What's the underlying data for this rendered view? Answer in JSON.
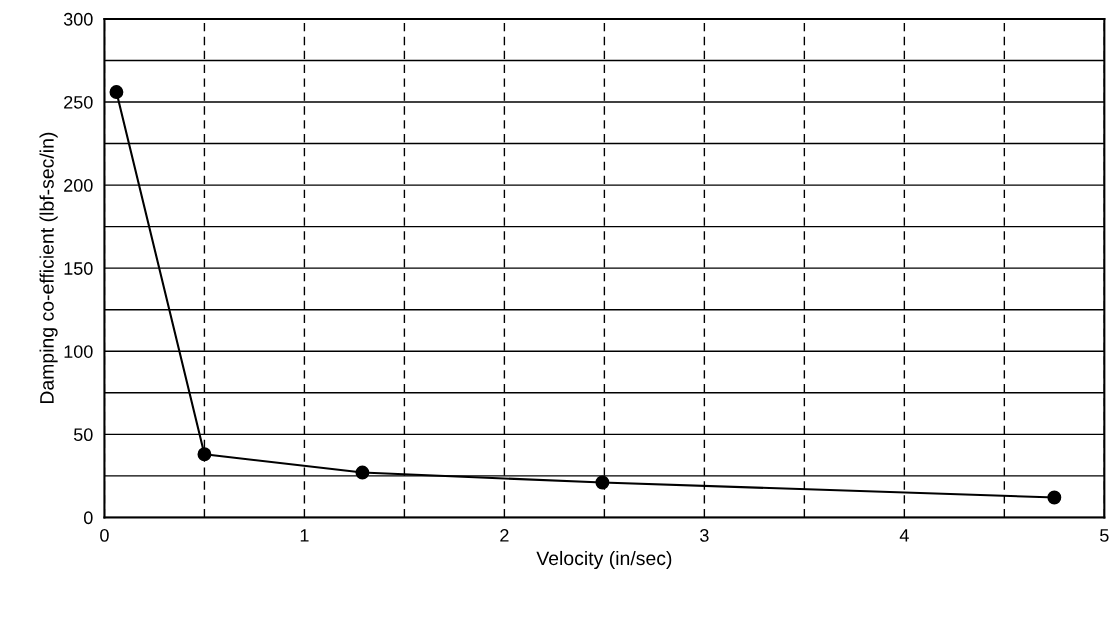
{
  "chart_data": {
    "type": "line",
    "xlabel": "Velocity (in/sec)",
    "ylabel": "Damping co-efficient (lbf-sec/in)",
    "x": [
      0.06,
      0.5,
      1.29,
      2.49,
      4.75
    ],
    "series": [
      {
        "color": "#000000",
        "values": [
          256,
          38,
          27,
          21,
          12
        ]
      }
    ],
    "xlim": [
      0,
      5
    ],
    "ylim": [
      0,
      300
    ],
    "xticks": [
      0,
      {
        "value": 0.5,
        "label": null
      },
      1,
      {
        "value": 1.5,
        "label": null
      },
      2,
      {
        "value": 2.5,
        "label": null
      },
      3,
      {
        "value": 3.5,
        "label": null
      },
      4,
      {
        "value": 4.5,
        "label": null
      },
      5
    ],
    "yticks": [
      0,
      {
        "value": 25,
        "label": null
      },
      50,
      {
        "value": 75,
        "label": null
      },
      100,
      {
        "value": 125,
        "label": null
      },
      150,
      {
        "value": 175,
        "label": null
      },
      200,
      {
        "value": 225,
        "label": null
      },
      250,
      {
        "value": 275,
        "label": null
      },
      300
    ],
    "grid": true,
    "marker": "circle",
    "line_style": "solid",
    "legend": false
  }
}
